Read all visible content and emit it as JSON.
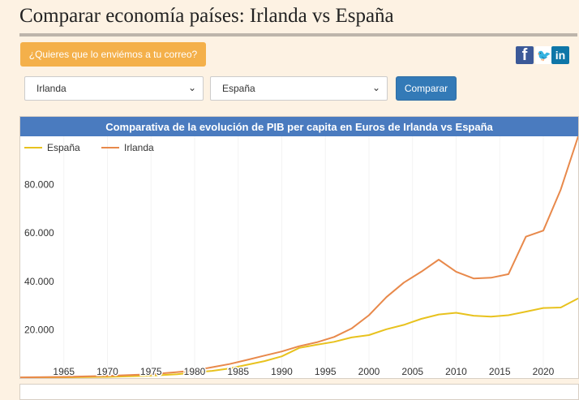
{
  "page": {
    "title": "Comparar economía países: Irlanda vs España",
    "email_button_label": "¿Quieres que lo enviémos a tu correo?",
    "social": {
      "facebook_glyph": "f",
      "twitter_glyph": "🐦",
      "linkedin_glyph": "in"
    },
    "select_country_1": "Irlanda",
    "select_country_2": "España",
    "compare_button_label": "Comparar",
    "chevron_glyph": "⌄"
  },
  "colors": {
    "spain": "#e8c21e",
    "ireland": "#e8894b"
  },
  "chart_data": {
    "type": "line",
    "title": "Comparativa de la evolución de PIB per capita en Euros de Irlanda vs España",
    "xlabel": "",
    "ylabel": "",
    "xlim": [
      1960,
      2024
    ],
    "ylim": [
      0,
      100000
    ],
    "x_ticks": [
      1965,
      1970,
      1975,
      1980,
      1985,
      1990,
      1995,
      2000,
      2005,
      2010,
      2015,
      2020
    ],
    "y_ticks": [
      20000,
      40000,
      60000,
      80000
    ],
    "y_tick_labels": [
      "20.000",
      "40.000",
      "60.000",
      "80.000"
    ],
    "legend_position": "top-left",
    "series": [
      {
        "name": "España",
        "x": [
          1960,
          1965,
          1970,
          1975,
          1978,
          1980,
          1982,
          1984,
          1986,
          1988,
          1990,
          1992,
          1994,
          1996,
          1998,
          2000,
          2002,
          2004,
          2006,
          2008,
          2010,
          2012,
          2014,
          2016,
          2018,
          2020,
          2022,
          2024
        ],
        "y": [
          200,
          300,
          500,
          1000,
          1600,
          2300,
          3000,
          4000,
          5500,
          7000,
          9000,
          12500,
          13800,
          15000,
          16800,
          17800,
          20200,
          22000,
          24500,
          26300,
          27000,
          25800,
          25400,
          26000,
          27500,
          29000,
          29200,
          33000
        ]
      },
      {
        "name": "Irlanda",
        "x": [
          1960,
          1965,
          1970,
          1975,
          1978,
          1980,
          1982,
          1984,
          1986,
          1988,
          1990,
          1992,
          1994,
          1996,
          1998,
          2000,
          2002,
          2004,
          2006,
          2008,
          2010,
          2012,
          2014,
          2016,
          2018,
          2020,
          2022,
          2024
        ],
        "y": [
          300,
          500,
          900,
          1600,
          2500,
          3200,
          4500,
          5800,
          7500,
          9300,
          11000,
          13200,
          14800,
          17000,
          20500,
          26000,
          33500,
          39500,
          44000,
          49000,
          44000,
          41200,
          41500,
          43000,
          58500,
          61000,
          78000,
          100000
        ]
      }
    ]
  }
}
